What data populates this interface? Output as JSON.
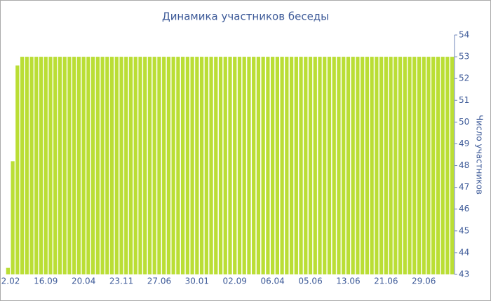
{
  "chart_data": {
    "type": "bar",
    "title": "Динамика участников беседы",
    "y_axis_label": "Число участников",
    "axis_side": "right",
    "color": "#bade35",
    "categories": [
      "2.02",
      null,
      null,
      null,
      null,
      null,
      null,
      null,
      "16.09",
      null,
      null,
      null,
      null,
      null,
      null,
      null,
      "20.04",
      null,
      null,
      null,
      null,
      null,
      null,
      null,
      "23.11",
      null,
      null,
      null,
      null,
      null,
      null,
      null,
      "27.06",
      null,
      null,
      null,
      null,
      null,
      null,
      null,
      "30.01",
      null,
      null,
      null,
      null,
      null,
      null,
      null,
      "02.09",
      null,
      null,
      null,
      null,
      null,
      null,
      null,
      "06.04",
      null,
      null,
      null,
      null,
      null,
      null,
      null,
      "05.06",
      null,
      null,
      null,
      null,
      null,
      null,
      null,
      "13.06",
      null,
      null,
      null,
      null,
      null,
      null,
      null,
      "21.06",
      null,
      null,
      null,
      null,
      null,
      null,
      null,
      "29.06",
      null,
      null,
      null,
      null,
      null,
      null
    ],
    "values": [
      43.3,
      48.2,
      52.6,
      53,
      53,
      53,
      53,
      53,
      53,
      53,
      53,
      53,
      53,
      53,
      53,
      53,
      53,
      53,
      53,
      53,
      53,
      53,
      53,
      53,
      53,
      53,
      53,
      53,
      53,
      53,
      53,
      53,
      53,
      53,
      53,
      53,
      53,
      53,
      53,
      53,
      53,
      53,
      53,
      53,
      53,
      53,
      53,
      53,
      53,
      53,
      53,
      53,
      53,
      53,
      53,
      53,
      53,
      53,
      53,
      53,
      53,
      53,
      53,
      53,
      53,
      53,
      53,
      53,
      53,
      53,
      53,
      53,
      53,
      53,
      53,
      53,
      53,
      53,
      53,
      53,
      53,
      53,
      53,
      53,
      53,
      53,
      53,
      53,
      53,
      53,
      53,
      53,
      53,
      53,
      53
    ],
    "ylim": [
      43,
      54
    ],
    "yticks": [
      43,
      44,
      45,
      46,
      47,
      48,
      49,
      50,
      51,
      52,
      53,
      54
    ]
  }
}
